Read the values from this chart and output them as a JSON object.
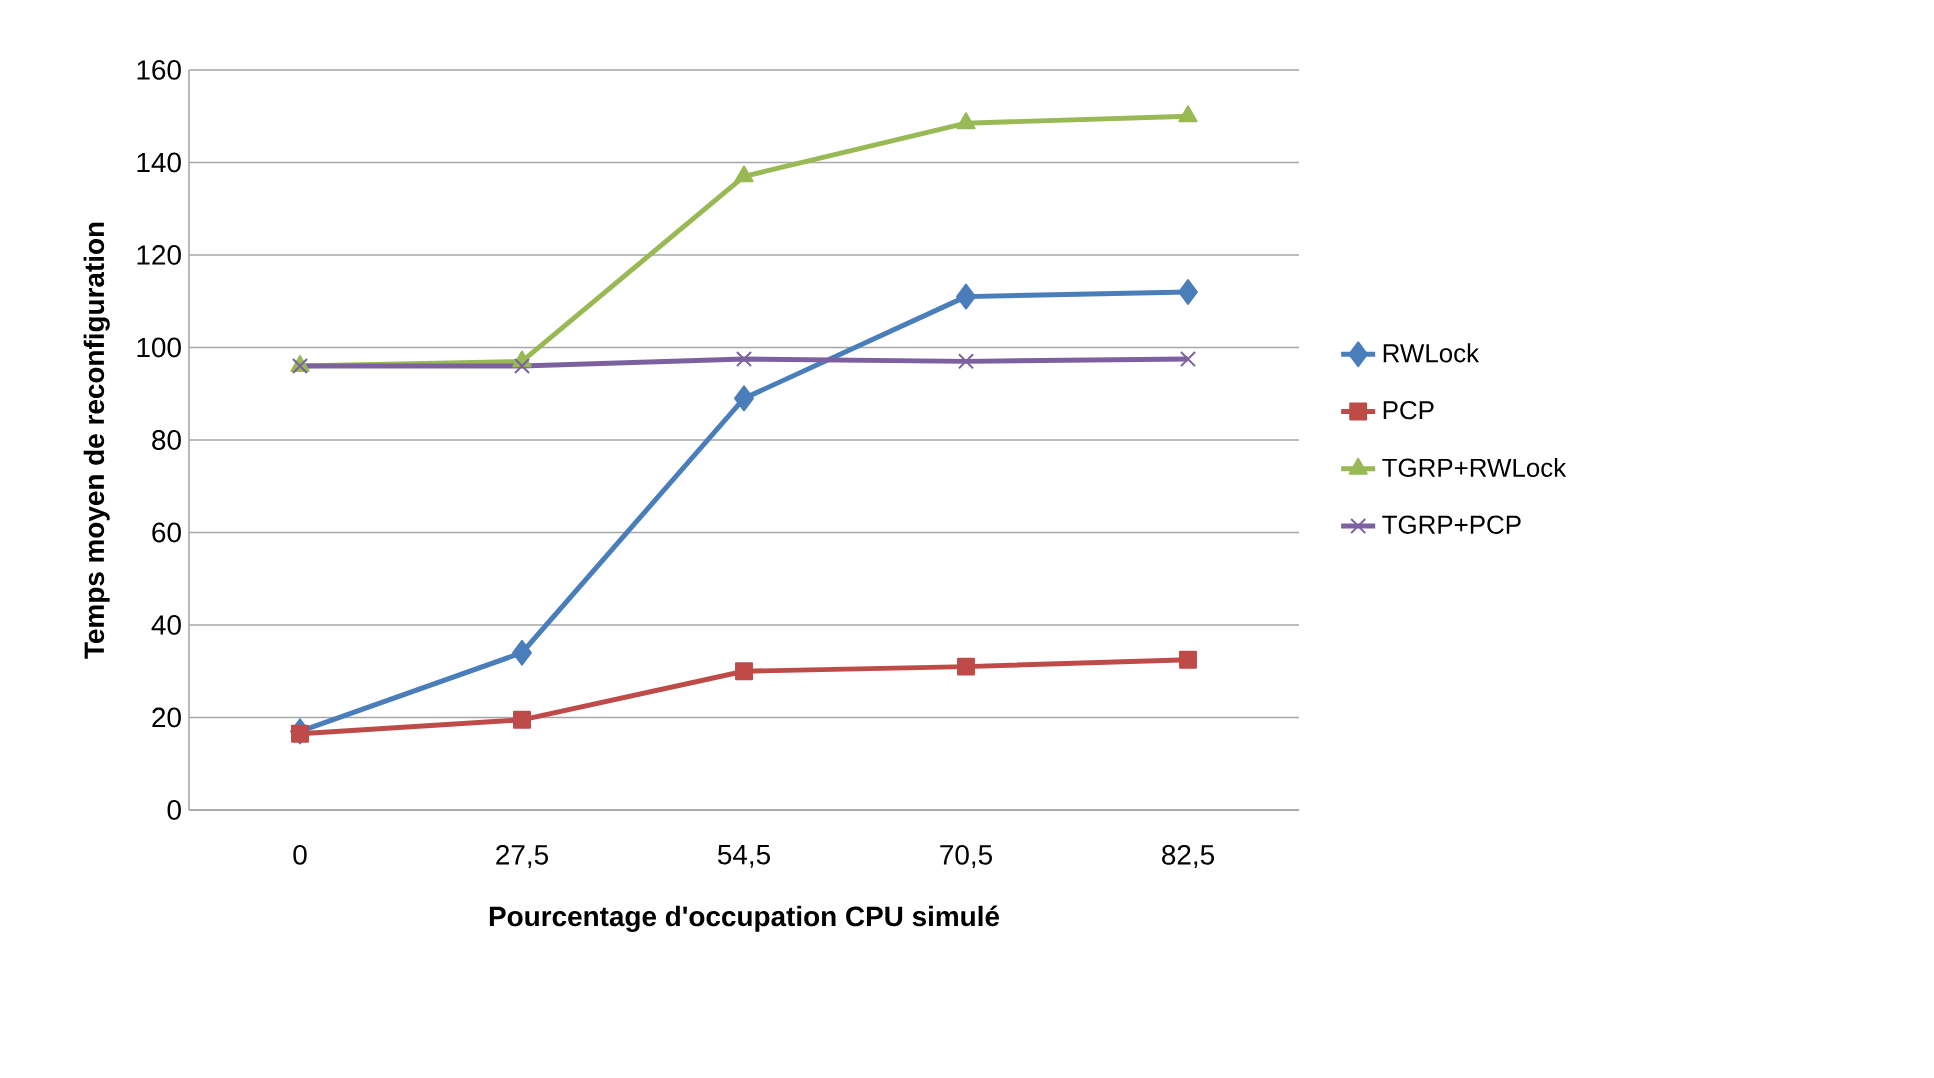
{
  "chart_data": {
    "type": "line",
    "xlabel": "Pourcentage d'occupation CPU simulé",
    "ylabel": "Temps moyen de reconfiguration",
    "categories": [
      "0",
      "27,5",
      "54,5",
      "70,5",
      "82,5"
    ],
    "series": [
      {
        "name": "RWLock",
        "color": "#4a7ebb",
        "marker": "diamond",
        "values": [
          17,
          34,
          89,
          111,
          112
        ]
      },
      {
        "name": "PCP",
        "color": "#be4b48",
        "marker": "square",
        "values": [
          16.5,
          19.5,
          30,
          31,
          32.5
        ]
      },
      {
        "name": "TGRP+RWLock",
        "color": "#98b954",
        "marker": "triangle",
        "values": [
          96,
          97,
          137,
          148.5,
          150
        ]
      },
      {
        "name": "TGRP+PCP",
        "color": "#7d60a0",
        "marker": "cross",
        "values": [
          96,
          96,
          97.5,
          97,
          97.5
        ]
      }
    ],
    "ylim": [
      0,
      160
    ],
    "yticks": [
      0,
      20,
      40,
      60,
      80,
      100,
      120,
      140,
      160
    ],
    "grid": "y",
    "legend": "right"
  }
}
